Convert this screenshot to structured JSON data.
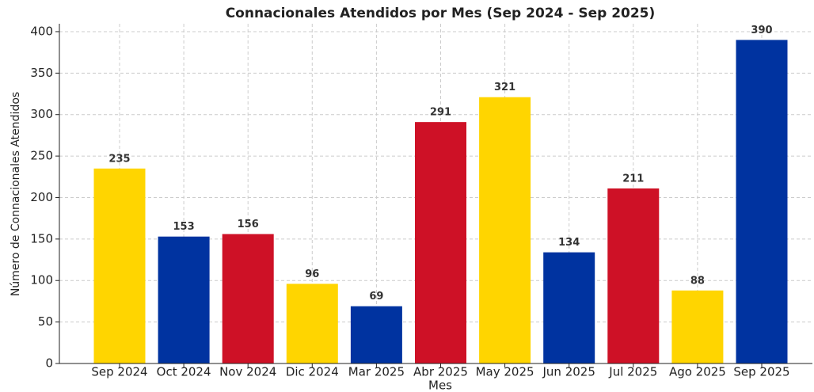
{
  "chart_data": {
    "type": "bar",
    "title": "Connacionales Atendidos por Mes (Sep 2024 - Sep 2025)",
    "x_label": "Mes",
    "y_label": "Número de Connacionales Atendidos",
    "categories": [
      "Sep 2024",
      "Oct 2024",
      "Nov 2024",
      "Dic 2024",
      "Mar 2025",
      "Abr 2025",
      "May 2025",
      "Jun 2025",
      "Jul 2025",
      "Ago 2025",
      "Sep 2025"
    ],
    "values": [
      235,
      153,
      156,
      96,
      69,
      291,
      321,
      134,
      211,
      88,
      390
    ],
    "colors": [
      "#FFD500",
      "#0033A0",
      "#CE1126",
      "#FFD500",
      "#0033A0",
      "#CE1126",
      "#FFD500",
      "#0033A0",
      "#CE1126",
      "#FFD500",
      "#0033A0"
    ],
    "ylim": [
      0,
      409.5
    ],
    "yticks": [
      0,
      50,
      100,
      150,
      200,
      250,
      300,
      350,
      400
    ],
    "grid": true
  }
}
